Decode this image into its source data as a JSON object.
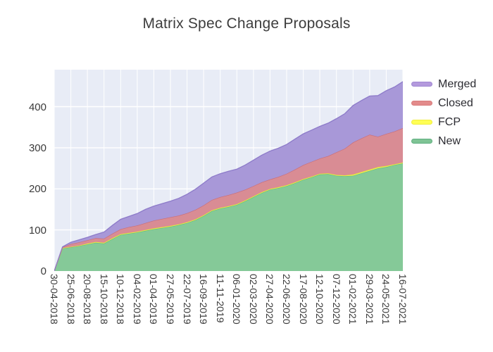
{
  "chart_data": {
    "type": "area",
    "stacked": true,
    "title": "Matrix Spec Change Proposals",
    "x_tick_labels": [
      "30-04-2018",
      "25-06-2018",
      "20-08-2018",
      "15-10-2018",
      "10-12-2018",
      "04-02-2019",
      "01-04-2019",
      "27-05-2019",
      "22-07-2019",
      "16-09-2019",
      "11-11-2019",
      "06-01-2020",
      "02-03-2020",
      "27-04-2020",
      "22-06-2020",
      "17-08-2020",
      "12-10-2020",
      "07-12-2020",
      "01-02-2021",
      "29-03-2021",
      "24-05-2021",
      "16-07-2021"
    ],
    "y_ticks": [
      0,
      100,
      200,
      300,
      400
    ],
    "ylim": [
      0,
      490
    ],
    "grid": true,
    "plot_bg": "#e8ecf6",
    "grid_color": "#ffffff",
    "tick_color": "#3a3a3a",
    "legend_position": "right-top",
    "legend_order": [
      "Merged",
      "Closed",
      "FCP",
      "New"
    ],
    "series": [
      {
        "name": "New",
        "fill": "#85c998",
        "line": "#5fbd85",
        "legend_color": "#7fc495",
        "legend_border": "#5fae7f",
        "values": [
          0,
          55,
          58,
          61,
          65,
          69,
          67,
          78,
          88,
          91,
          94,
          98,
          102,
          105,
          108,
          112,
          117,
          124,
          134,
          146,
          152,
          156,
          161,
          170,
          180,
          190,
          198,
          202,
          207,
          214,
          222,
          228,
          235,
          236,
          232,
          231,
          232,
          238,
          244,
          250,
          253,
          258,
          262
        ]
      },
      {
        "name": "FCP",
        "fill": "#eded55",
        "line": "#e3df3a",
        "legend_color": "#ffff55",
        "legend_border": "#f0ee3e",
        "values": [
          0,
          1,
          1,
          1,
          2,
          2,
          2,
          2,
          2,
          2,
          2,
          2,
          2,
          2,
          2,
          2,
          2,
          2,
          2,
          2,
          2,
          2,
          2,
          2,
          2,
          2,
          2,
          2,
          2,
          2,
          2,
          2,
          2,
          2,
          2,
          2,
          3,
          3,
          3,
          3,
          3,
          2,
          2
        ]
      },
      {
        "name": "Closed",
        "fill": "#d98c94",
        "line": "#c96e79",
        "legend_color": "#e38b8b",
        "legend_border": "#d97b7b",
        "values": [
          0,
          2,
          7,
          8,
          8,
          9,
          10,
          11,
          12,
          14,
          15,
          17,
          19,
          20,
          21,
          21,
          22,
          23,
          24,
          25,
          26,
          27,
          28,
          26,
          25,
          24,
          23,
          25,
          28,
          31,
          34,
          36,
          37,
          42,
          55,
          65,
          78,
          82,
          85,
          74,
          78,
          80,
          84
        ]
      },
      {
        "name": "Merged",
        "fill": "#a898d8",
        "line": "#8d7bc9",
        "legend_color": "#b49add",
        "legend_border": "#9f86d2",
        "values": [
          0,
          1,
          4,
          6,
          7,
          9,
          16,
          20,
          24,
          26,
          29,
          33,
          35,
          37,
          39,
          42,
          46,
          50,
          54,
          56,
          57,
          58,
          57,
          60,
          63,
          66,
          69,
          70,
          71,
          74,
          76,
          77,
          78,
          80,
          82,
          85,
          90,
          92,
          94,
          100,
          105,
          108,
          113
        ]
      }
    ]
  }
}
